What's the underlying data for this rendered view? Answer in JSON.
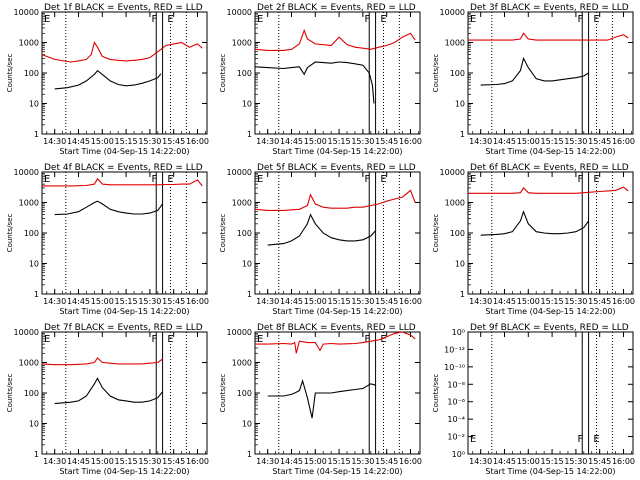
{
  "x_tick_labels": [
    "14:30",
    "14:45",
    "15:00",
    "15:15",
    "15:30",
    "15:45",
    "16:00"
  ],
  "x_axis_label": "Start Time (04-Sep-15 14:22:00)",
  "y_axis_label": "Counts/sec",
  "marker_F": "F",
  "marker_E": "E",
  "colors": {
    "events": "#000000",
    "lld": "#e00000",
    "axes": "#000000",
    "background": "#ffffff"
  },
  "chart_data": [
    {
      "type": "line",
      "title": "Det 1f BLACK = Events, RED = LLD",
      "xlim": [
        "14:22",
        "16:06"
      ],
      "ylim": [
        1,
        10000
      ],
      "yscale": "log",
      "y_tick_labels": [
        "1",
        "10",
        "100",
        "1000",
        "10000"
      ],
      "marker_labels": [
        "F",
        "E"
      ],
      "series": [
        {
          "name": "BLACK = Events",
          "color": "#000000",
          "x": [
            "14:30",
            "14:38",
            "14:45",
            "14:50",
            "14:55",
            "14:57",
            "15:00",
            "15:05",
            "15:10",
            "15:15",
            "15:20",
            "15:25",
            "15:30",
            "15:35",
            "15:37"
          ],
          "y": [
            30,
            33,
            40,
            55,
            90,
            120,
            90,
            55,
            42,
            38,
            40,
            46,
            55,
            70,
            95
          ]
        },
        {
          "name": "RED = LLD",
          "color": "#e00000",
          "x": [
            "14:22",
            "14:30",
            "14:40",
            "14:45",
            "14:50",
            "14:53",
            "14:55",
            "14:57",
            "15:00",
            "15:05",
            "15:10",
            "15:15",
            "15:20",
            "15:25",
            "15:30",
            "15:35",
            "15:37",
            "15:40",
            "15:45",
            "15:50",
            "15:55",
            "16:00",
            "16:03"
          ],
          "y": [
            400,
            280,
            230,
            250,
            280,
            400,
            1000,
            700,
            350,
            280,
            260,
            250,
            260,
            280,
            320,
            500,
            600,
            800,
            900,
            1000,
            700,
            900,
            650
          ]
        }
      ]
    },
    {
      "type": "line",
      "title": "Det 2f BLACK = Events, RED = LLD",
      "xlim": [
        "14:22",
        "16:06"
      ],
      "ylim": [
        1,
        10000
      ],
      "yscale": "log",
      "y_tick_labels": [
        "1",
        "10",
        "100",
        "1000",
        "10000"
      ],
      "marker_labels": [
        "F",
        "E"
      ],
      "series": [
        {
          "name": "BLACK = Events",
          "color": "#000000",
          "x": [
            "14:22",
            "14:30",
            "14:40",
            "14:45",
            "14:50",
            "14:53",
            "14:55",
            "15:00",
            "15:05",
            "15:10",
            "15:15",
            "15:20",
            "15:25",
            "15:30",
            "15:34",
            "15:36",
            "15:37"
          ],
          "y": [
            160,
            150,
            140,
            150,
            160,
            90,
            150,
            230,
            220,
            210,
            230,
            220,
            200,
            180,
            100,
            40,
            10
          ]
        },
        {
          "name": "RED = LLD",
          "color": "#e00000",
          "x": [
            "14:22",
            "14:30",
            "14:40",
            "14:45",
            "14:50",
            "14:53",
            "14:55",
            "15:00",
            "15:05",
            "15:10",
            "15:15",
            "15:20",
            "15:25",
            "15:30",
            "15:35",
            "15:40",
            "15:45",
            "15:50",
            "15:55",
            "16:00",
            "16:03"
          ],
          "y": [
            600,
            550,
            550,
            600,
            900,
            2500,
            1300,
            900,
            850,
            800,
            1500,
            850,
            700,
            650,
            600,
            700,
            800,
            1000,
            1500,
            2000,
            1200
          ]
        }
      ]
    },
    {
      "type": "line",
      "title": "Det 3f BLACK = Events, RED = LLD",
      "xlim": [
        "14:22",
        "16:06"
      ],
      "ylim": [
        1,
        10000
      ],
      "yscale": "log",
      "y_tick_labels": [
        "1",
        "10",
        "100",
        "1000",
        "10000"
      ],
      "marker_labels": [
        "F",
        "E"
      ],
      "series": [
        {
          "name": "BLACK = Events",
          "color": "#000000",
          "x": [
            "14:30",
            "14:40",
            "14:45",
            "14:50",
            "14:55",
            "14:57",
            "15:00",
            "15:05",
            "15:10",
            "15:15",
            "15:20",
            "15:25",
            "15:30",
            "15:35",
            "15:38"
          ],
          "y": [
            40,
            42,
            45,
            55,
            120,
            300,
            150,
            65,
            55,
            55,
            60,
            65,
            70,
            80,
            100
          ]
        },
        {
          "name": "RED = LLD",
          "color": "#e00000",
          "x": [
            "14:22",
            "14:30",
            "14:40",
            "14:50",
            "14:55",
            "14:57",
            "15:00",
            "15:05",
            "15:10",
            "15:15",
            "15:20",
            "15:25",
            "15:30",
            "15:35",
            "15:40",
            "15:45",
            "15:50",
            "15:55",
            "16:00",
            "16:03"
          ],
          "y": [
            1200,
            1200,
            1200,
            1200,
            1300,
            2000,
            1300,
            1200,
            1200,
            1200,
            1200,
            1200,
            1200,
            1200,
            1200,
            1200,
            1200,
            1500,
            1800,
            1400
          ]
        }
      ]
    },
    {
      "type": "line",
      "title": "Det 4f BLACK = Events, RED = LLD",
      "xlim": [
        "14:22",
        "16:06"
      ],
      "ylim": [
        1,
        10000
      ],
      "yscale": "log",
      "y_tick_labels": [
        "1",
        "10",
        "100",
        "1000",
        "10000"
      ],
      "marker_labels": [
        "F",
        "E"
      ],
      "series": [
        {
          "name": "BLACK = Events",
          "color": "#000000",
          "x": [
            "14:30",
            "14:38",
            "14:45",
            "14:50",
            "14:55",
            "14:57",
            "15:00",
            "15:05",
            "15:10",
            "15:15",
            "15:20",
            "15:25",
            "15:30",
            "15:35",
            "15:38"
          ],
          "y": [
            400,
            420,
            500,
            700,
            1000,
            1100,
            900,
            600,
            500,
            450,
            420,
            420,
            450,
            550,
            900
          ]
        },
        {
          "name": "RED = LLD",
          "color": "#e00000",
          "x": [
            "14:22",
            "14:30",
            "14:40",
            "14:50",
            "14:55",
            "14:57",
            "15:00",
            "15:05",
            "15:10",
            "15:15",
            "15:20",
            "15:25",
            "15:30",
            "15:35",
            "15:40",
            "15:45",
            "15:50",
            "15:55",
            "16:00",
            "16:03"
          ],
          "y": [
            3500,
            3500,
            3500,
            3600,
            4000,
            6000,
            4000,
            3800,
            3800,
            3800,
            3800,
            3800,
            3800,
            3800,
            3900,
            3900,
            4000,
            4000,
            5500,
            3500
          ]
        }
      ]
    },
    {
      "type": "line",
      "title": "Det 5f BLACK = Events, RED = LLD",
      "xlim": [
        "14:22",
        "16:06"
      ],
      "ylim": [
        1,
        10000
      ],
      "yscale": "log",
      "y_tick_labels": [
        "1",
        "10",
        "100",
        "1000",
        "10000"
      ],
      "marker_labels": [
        "F",
        "E"
      ],
      "series": [
        {
          "name": "BLACK = Events",
          "color": "#000000",
          "x": [
            "14:30",
            "14:40",
            "14:45",
            "14:50",
            "14:55",
            "14:57",
            "15:00",
            "15:05",
            "15:10",
            "15:15",
            "15:20",
            "15:25",
            "15:30",
            "15:35",
            "15:38"
          ],
          "y": [
            40,
            45,
            55,
            80,
            200,
            400,
            200,
            100,
            70,
            60,
            55,
            55,
            60,
            80,
            120
          ]
        },
        {
          "name": "RED = LLD",
          "color": "#e00000",
          "x": [
            "14:22",
            "14:30",
            "14:40",
            "14:50",
            "14:55",
            "14:57",
            "15:00",
            "15:05",
            "15:10",
            "15:15",
            "15:20",
            "15:25",
            "15:30",
            "15:35",
            "15:40",
            "15:45",
            "15:50",
            "15:55",
            "16:00",
            "16:03"
          ],
          "y": [
            600,
            550,
            550,
            600,
            800,
            1800,
            900,
            700,
            650,
            650,
            650,
            700,
            700,
            800,
            900,
            1100,
            1300,
            1500,
            2500,
            1000
          ]
        }
      ]
    },
    {
      "type": "line",
      "title": "Det 6f BLACK = Events, RED = LLD",
      "xlim": [
        "14:22",
        "16:06"
      ],
      "ylim": [
        1,
        10000
      ],
      "yscale": "log",
      "y_tick_labels": [
        "1",
        "10",
        "100",
        "1000",
        "10000"
      ],
      "marker_labels": [
        "F",
        "E"
      ],
      "series": [
        {
          "name": "BLACK = Events",
          "color": "#000000",
          "x": [
            "14:30",
            "14:40",
            "14:45",
            "14:50",
            "14:55",
            "14:57",
            "15:00",
            "15:05",
            "15:10",
            "15:15",
            "15:20",
            "15:25",
            "15:30",
            "15:35",
            "15:38"
          ],
          "y": [
            85,
            90,
            95,
            110,
            250,
            500,
            200,
            110,
            100,
            95,
            95,
            100,
            110,
            150,
            250
          ]
        },
        {
          "name": "RED = LLD",
          "color": "#e00000",
          "x": [
            "14:22",
            "14:30",
            "14:40",
            "14:50",
            "14:55",
            "14:57",
            "15:00",
            "15:05",
            "15:10",
            "15:15",
            "15:20",
            "15:25",
            "15:30",
            "15:35",
            "15:40",
            "15:45",
            "15:50",
            "15:55",
            "16:00",
            "16:03"
          ],
          "y": [
            2000,
            2000,
            2000,
            2000,
            2100,
            3000,
            2100,
            2000,
            2000,
            2000,
            2000,
            2000,
            2000,
            2100,
            2200,
            2300,
            2400,
            2500,
            3200,
            2400
          ]
        }
      ]
    },
    {
      "type": "line",
      "title": "Det 7f BLACK = Events, RED = LLD",
      "xlim": [
        "14:22",
        "16:06"
      ],
      "ylim": [
        1,
        10000
      ],
      "yscale": "log",
      "y_tick_labels": [
        "1",
        "10",
        "100",
        "1000",
        "10000"
      ],
      "marker_labels": [
        "F",
        "E"
      ],
      "series": [
        {
          "name": "BLACK = Events",
          "color": "#000000",
          "x": [
            "14:30",
            "14:40",
            "14:45",
            "14:50",
            "14:55",
            "14:57",
            "15:00",
            "15:05",
            "15:10",
            "15:15",
            "15:20",
            "15:25",
            "15:30",
            "15:35",
            "15:38"
          ],
          "y": [
            45,
            50,
            55,
            80,
            200,
            300,
            150,
            80,
            60,
            55,
            50,
            50,
            55,
            70,
            110
          ]
        },
        {
          "name": "RED = LLD",
          "color": "#e00000",
          "x": [
            "14:22",
            "14:30",
            "14:40",
            "14:50",
            "14:55",
            "14:57",
            "15:00",
            "15:05",
            "15:10",
            "15:15",
            "15:20",
            "15:25",
            "15:30",
            "15:35",
            "15:38"
          ],
          "y": [
            900,
            850,
            850,
            900,
            1000,
            1400,
            1000,
            950,
            900,
            900,
            900,
            900,
            950,
            1000,
            1300
          ]
        }
      ]
    },
    {
      "type": "line",
      "title": "Det 8f BLACK = Events, RED = LLD",
      "xlim": [
        "14:22",
        "16:06"
      ],
      "ylim": [
        1,
        10000
      ],
      "yscale": "log",
      "y_tick_labels": [
        "1",
        "10",
        "100",
        "1000",
        "10000"
      ],
      "marker_labels": [
        "F",
        "E"
      ],
      "series": [
        {
          "name": "BLACK = Events",
          "color": "#000000",
          "x": [
            "14:30",
            "14:40",
            "14:45",
            "14:47",
            "14:50",
            "14:52",
            "14:55",
            "14:58",
            "15:00",
            "15:05",
            "15:10",
            "15:15",
            "15:20",
            "15:25",
            "15:30",
            "15:35",
            "15:38"
          ],
          "y": [
            80,
            80,
            90,
            100,
            120,
            250,
            70,
            15,
            100,
            100,
            100,
            110,
            120,
            130,
            140,
            200,
            180
          ]
        },
        {
          "name": "RED = LLD",
          "color": "#e00000",
          "x": [
            "14:22",
            "14:30",
            "14:40",
            "14:45",
            "14:47",
            "14:48",
            "14:50",
            "14:52",
            "14:55",
            "15:00",
            "15:02",
            "15:03",
            "15:05",
            "15:10",
            "15:15",
            "15:20",
            "15:25",
            "15:30",
            "15:35",
            "15:40",
            "15:45",
            "15:50",
            "15:55",
            "16:00",
            "16:03"
          ],
          "y": [
            4000,
            4000,
            4200,
            4000,
            4500,
            2000,
            5000,
            4800,
            4500,
            4500,
            3000,
            2500,
            4000,
            4200,
            4000,
            4100,
            4200,
            4500,
            5000,
            5500,
            7000,
            9000,
            10000,
            8000,
            6000
          ]
        }
      ]
    },
    {
      "type": "line",
      "title": "Det 9f BLACK = Events, RED = LLD",
      "xlim": [
        "14:22",
        "16:06"
      ],
      "ylim": [
        1,
        10
      ],
      "yscale": "log",
      "y_tick_labels": [
        "10⁰",
        "10⁻²",
        "10⁻⁴",
        "10⁻⁶",
        "10⁻⁸",
        "10⁻¹⁰",
        "10⁻¹²",
        "10⁰"
      ],
      "marker_labels": [
        "F",
        "E"
      ],
      "series": []
    }
  ]
}
